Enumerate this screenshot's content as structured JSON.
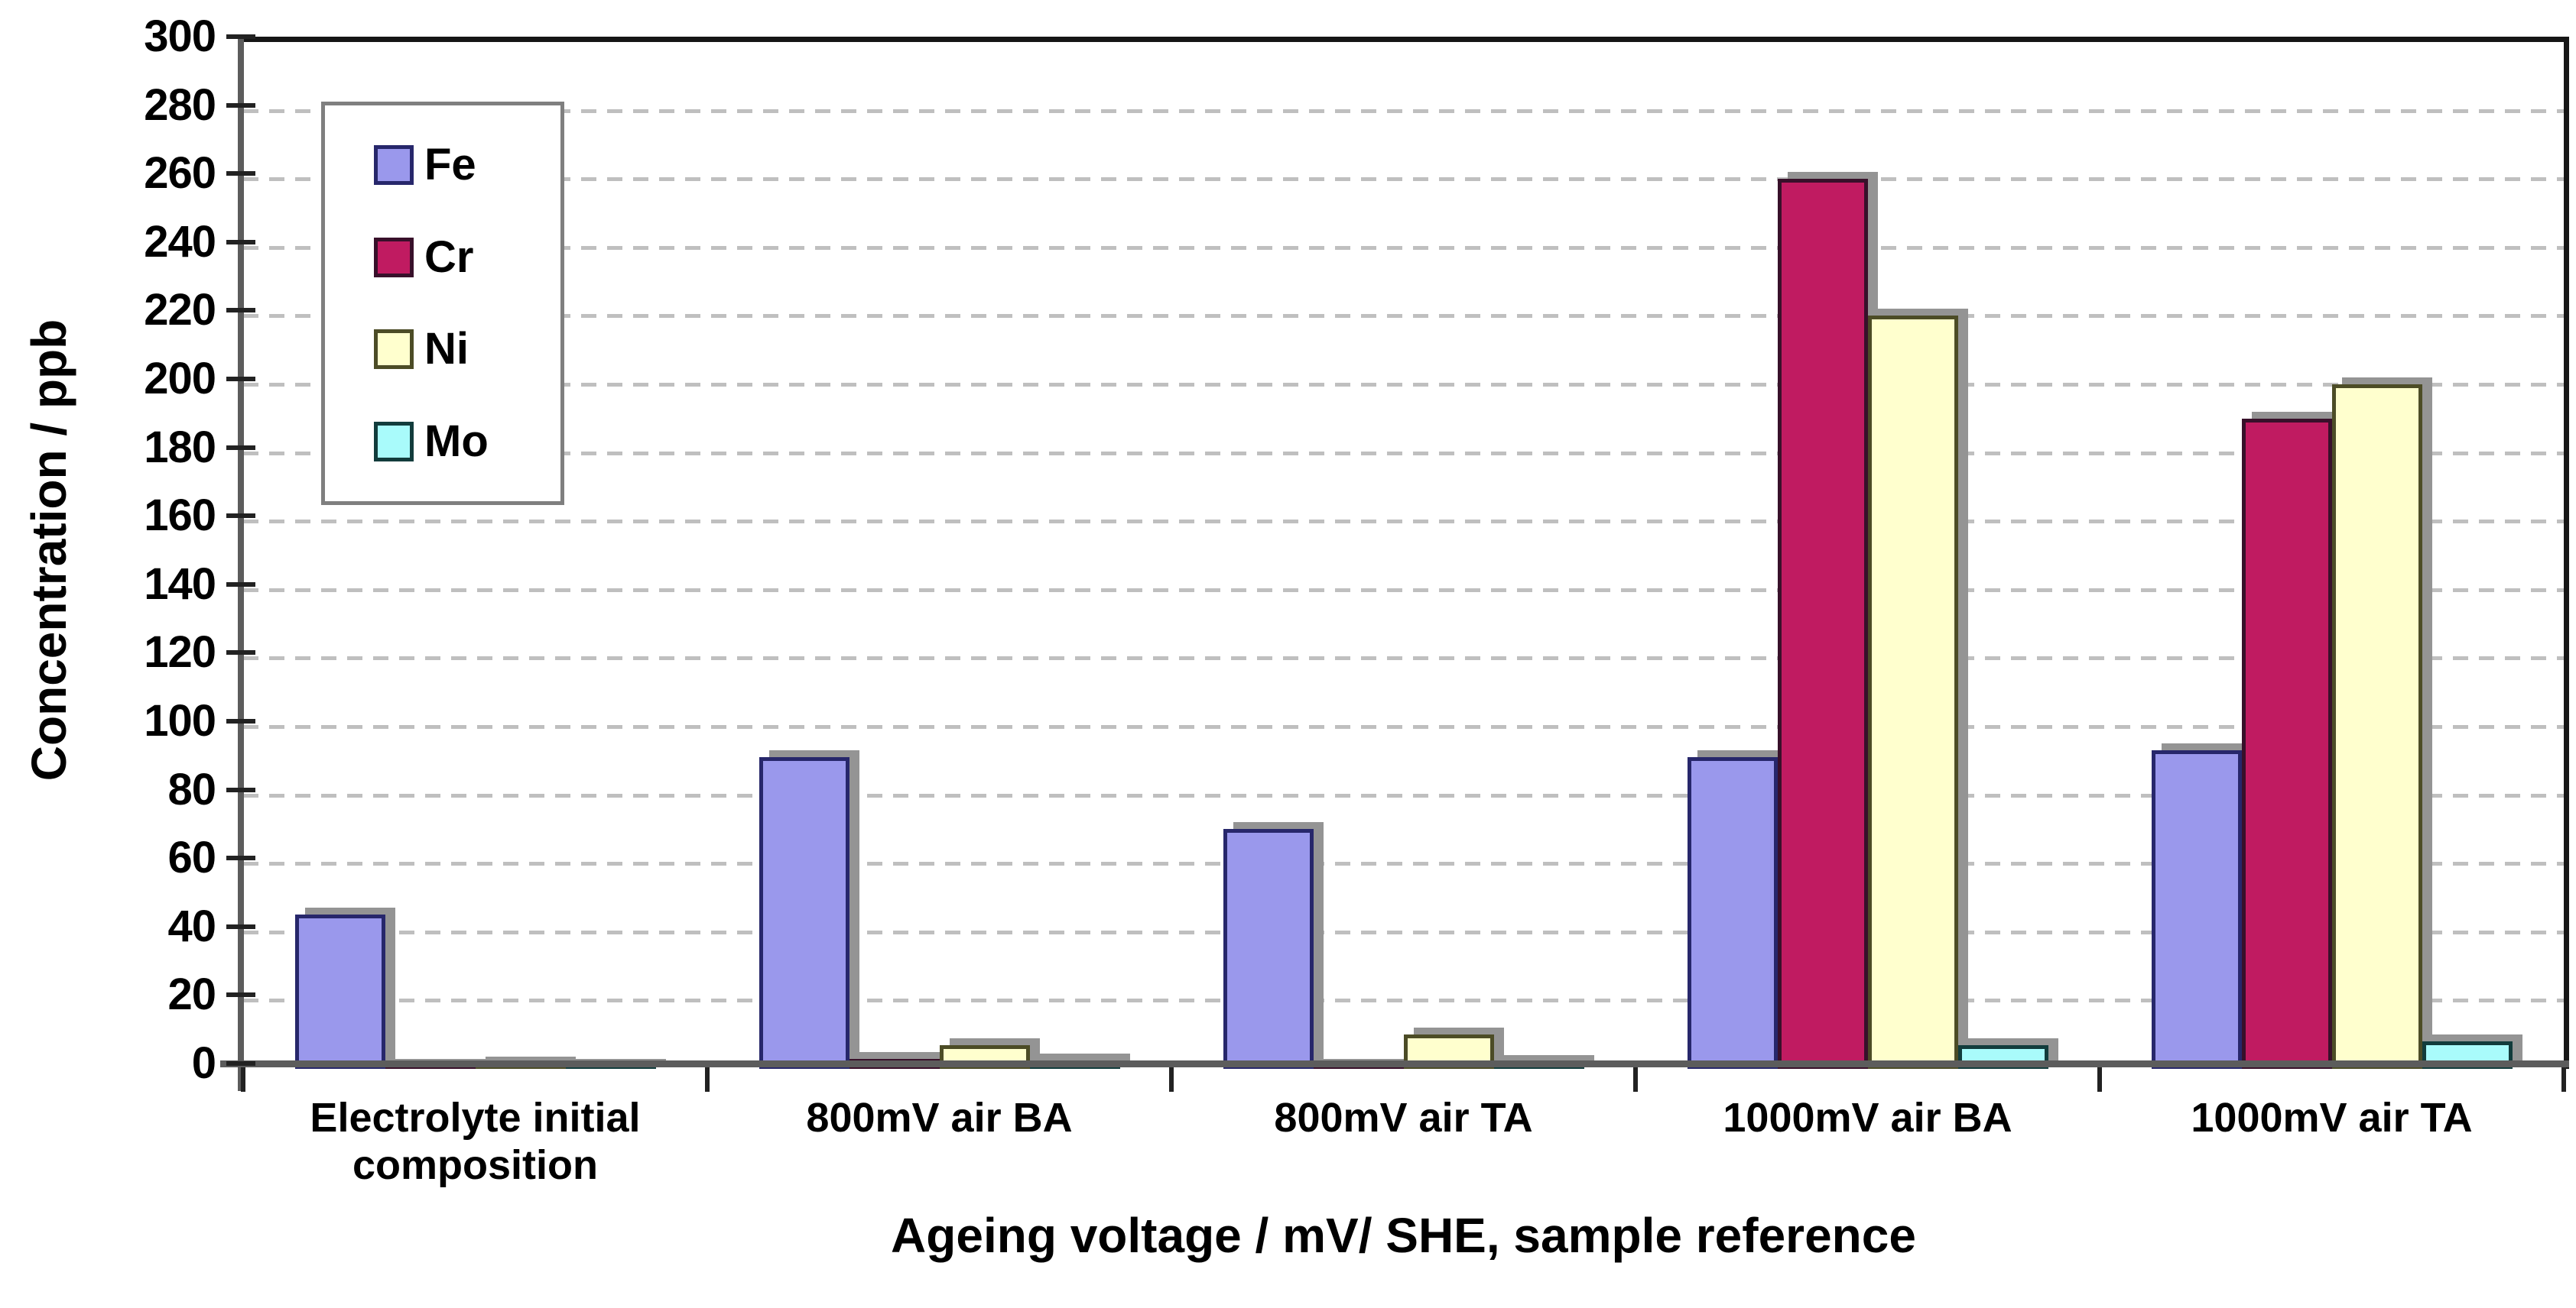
{
  "chart_data": {
    "type": "bar",
    "title": "",
    "xlabel": "Ageing voltage / mV/ SHE, sample reference",
    "ylabel": "Concentration / ppb",
    "categories": [
      "Electrolyte initial composition",
      "800mV air BA",
      "800mV air TA",
      "1000mV air BA",
      "1000mV air TA"
    ],
    "series": [
      {
        "name": "Fe",
        "fill": "#9a98ec",
        "border": "#27276b",
        "values": [
          45,
          91,
          70,
          91,
          93
        ]
      },
      {
        "name": "Cr",
        "fill": "#c01b61",
        "border": "#38102a",
        "values": [
          0.5,
          3,
          1,
          260,
          190
        ]
      },
      {
        "name": "Ni",
        "fill": "#ffffce",
        "border": "#4c4c26",
        "values": [
          1.5,
          7,
          10,
          220,
          200
        ]
      },
      {
        "name": "Mo",
        "fill": "#a9fbfb",
        "border": "#123c3c",
        "values": [
          0.5,
          2.5,
          2,
          7,
          8
        ]
      }
    ],
    "ylim": [
      0,
      300
    ],
    "ytick_step": 20,
    "grid": true,
    "legend_position": "upper-left-inside"
  },
  "style": {
    "grid_color": "#bfbfbf",
    "frame_color": "#161616",
    "axis_color": "#5c5c5c",
    "bar_shadow_color": "#949494",
    "legend_border_color": "#7f7f7f",
    "background_color": "#ffffff"
  }
}
